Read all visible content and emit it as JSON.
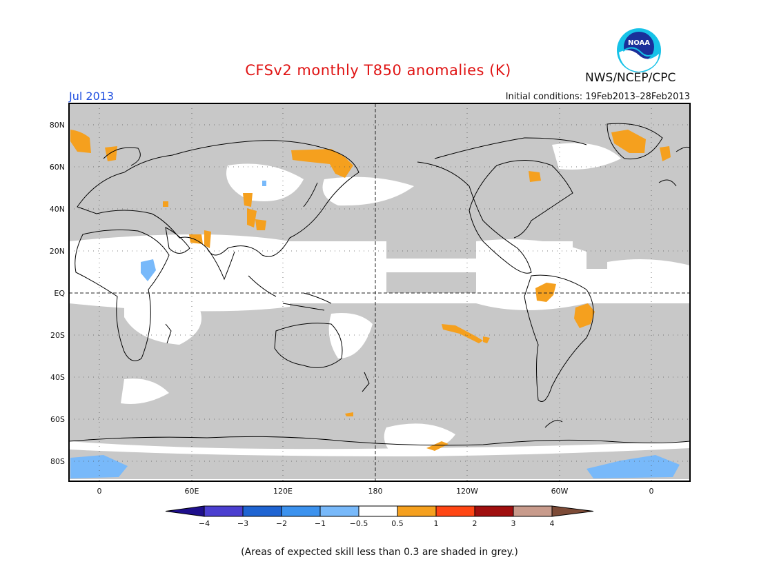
{
  "header": {
    "title": "CFSv2 monthly T850 anomalies (K)",
    "month": "Jul 2013",
    "initial_conditions": "Initial conditions: 19Feb2013–28Feb2013",
    "agency": "NWS/NCEP/CPC",
    "logo_text": "NOAA"
  },
  "map": {
    "lat_labels": [
      "80N",
      "60N",
      "40N",
      "20N",
      "EQ",
      "20S",
      "40S",
      "60S",
      "80S"
    ],
    "lon_labels": [
      "0",
      "60E",
      "120E",
      "180",
      "120W",
      "60W",
      "0"
    ],
    "land_outline": "coastline",
    "skill_mask_color": "#c8c8c8",
    "shading": [
      {
        "region": "Arctic Scandinavia",
        "class": "0.5 to 1"
      },
      {
        "region": "Northern Russia",
        "class": "0.5 to 1"
      },
      {
        "region": "Eastern Siberia",
        "class": "0.5 to 1"
      },
      {
        "region": "Greenland",
        "class": "0.5 to 1"
      },
      {
        "region": "Hudson Bay",
        "class": "0.5 to 1"
      },
      {
        "region": "Mongolia",
        "class": "0.5 to 1"
      },
      {
        "region": "Northern India",
        "class": "0.5 to 1"
      },
      {
        "region": "Amazon",
        "class": "0.5 to 1"
      },
      {
        "region": "Eastern Brazil",
        "class": "0.5 to 1"
      },
      {
        "region": "South Pacific",
        "class": "0.5 to 1"
      },
      {
        "region": "Ross Sea",
        "class": "0.5 to 1"
      },
      {
        "region": "Horn of Africa",
        "class": "-1 to -0.5"
      },
      {
        "region": "East Antarctica",
        "class": "-1 to -0.5"
      }
    ]
  },
  "colorbar": {
    "labels": [
      "−4",
      "−3",
      "−2",
      "−1",
      "−0.5",
      "0.5",
      "1",
      "2",
      "3",
      "4"
    ],
    "colors": [
      "#1e0f8c",
      "#4b3fd0",
      "#1f64d2",
      "#3c92ee",
      "#78b9fa",
      "#ffffff",
      "#f5a01e",
      "#ff4614",
      "#a00f0f",
      "#c89b8c",
      "#7d4b37"
    ]
  },
  "footer": {
    "note": "(Areas of expected skill less than 0.3 are shaded in grey.)"
  }
}
